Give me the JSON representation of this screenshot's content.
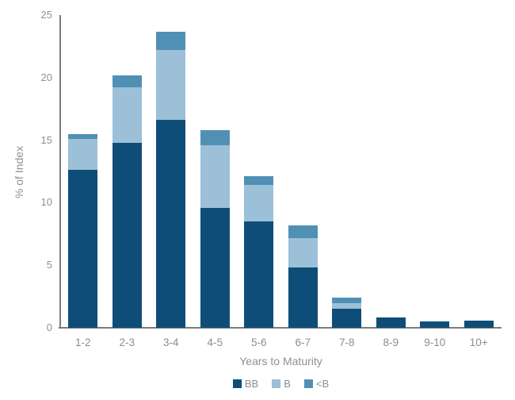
{
  "chart_data": {
    "type": "bar",
    "stacked": true,
    "title": "",
    "xlabel": "Years to Maturity",
    "ylabel": "% of Index",
    "ylim": [
      0,
      25
    ],
    "yticks": [
      0,
      5,
      10,
      15,
      20,
      25
    ],
    "grid": false,
    "legend_position": "bottom",
    "categories": [
      "1-2",
      "2-3",
      "3-4",
      "4-5",
      "5-6",
      "6-7",
      "7-8",
      "8-9",
      "9-10",
      "10+"
    ],
    "series": [
      {
        "name": "BB",
        "color": "#0e4d78",
        "values": [
          12.6,
          14.8,
          16.6,
          9.6,
          8.5,
          4.8,
          1.5,
          0.8,
          0.5,
          0.6
        ]
      },
      {
        "name": "B",
        "color": "#9cc0d7",
        "values": [
          2.5,
          4.4,
          5.6,
          5.0,
          2.9,
          2.4,
          0.5,
          0,
          0,
          0
        ]
      },
      {
        "name": "<B",
        "color": "#5190b5",
        "values": [
          0.4,
          1.0,
          1.5,
          1.2,
          0.7,
          1.0,
          0.4,
          0,
          0,
          0
        ]
      }
    ],
    "colors": {
      "axis_line": "#797b7e",
      "tick_text": "#8d9093"
    }
  }
}
